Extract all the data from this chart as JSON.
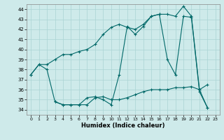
{
  "xlabel": "Humidex (Indice chaleur)",
  "xlim": [
    -0.5,
    23.5
  ],
  "ylim": [
    33.5,
    44.5
  ],
  "yticks": [
    34,
    35,
    36,
    37,
    38,
    39,
    40,
    41,
    42,
    43,
    44
  ],
  "xticks": [
    0,
    1,
    2,
    3,
    4,
    5,
    6,
    7,
    8,
    9,
    10,
    11,
    12,
    13,
    14,
    15,
    16,
    17,
    18,
    19,
    20,
    21,
    22,
    23
  ],
  "bg_color": "#ceeaea",
  "grid_color": "#aad4d4",
  "line_color": "#006868",
  "line1_x": [
    0,
    1,
    2,
    3,
    4,
    5,
    6,
    7,
    8,
    9,
    10,
    11,
    12,
    13,
    14,
    15,
    16,
    17,
    18,
    19,
    20,
    21,
    22
  ],
  "line1_y": [
    37.5,
    38.5,
    38.5,
    39.0,
    39.5,
    39.5,
    39.8,
    40.0,
    40.5,
    41.5,
    42.2,
    42.5,
    42.2,
    42.0,
    42.5,
    43.3,
    43.5,
    43.5,
    43.3,
    44.3,
    43.3,
    36.0,
    36.5
  ],
  "line2_x": [
    0,
    1,
    2,
    3,
    4,
    5,
    6,
    7,
    8,
    9,
    10,
    11,
    12,
    13,
    14,
    15,
    16,
    17,
    18,
    19,
    20,
    21,
    22
  ],
  "line2_y": [
    37.5,
    38.5,
    38.0,
    34.8,
    34.5,
    34.5,
    34.5,
    35.2,
    35.3,
    35.0,
    34.5,
    37.5,
    42.3,
    41.5,
    42.3,
    43.3,
    43.5,
    39.0,
    37.5,
    43.3,
    43.2,
    35.8,
    34.2
  ],
  "line3_x": [
    3,
    4,
    5,
    6,
    7,
    8,
    9,
    10,
    11,
    12,
    13,
    14,
    15,
    16,
    17,
    18,
    19,
    20,
    21,
    22
  ],
  "line3_y": [
    34.8,
    34.5,
    34.5,
    34.5,
    34.5,
    35.2,
    35.3,
    35.0,
    35.0,
    35.2,
    35.5,
    35.8,
    36.0,
    36.0,
    36.0,
    36.2,
    36.2,
    36.3,
    36.0,
    34.2
  ]
}
